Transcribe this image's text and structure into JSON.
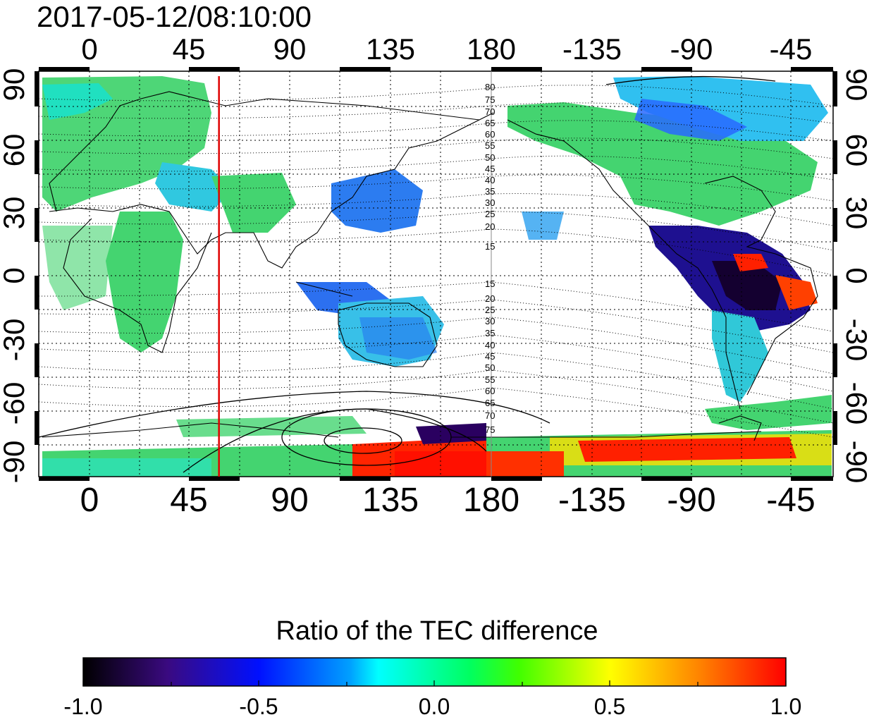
{
  "timestamp": "2017-05-12/08:10:00",
  "x_ticks": [
    "0",
    "45",
    "90",
    "135",
    "180",
    "-135",
    "-90",
    "-45"
  ],
  "y_ticks_left": [
    "90",
    "60",
    "30",
    "0",
    "-30",
    "-60",
    "-90"
  ],
  "y_ticks_right": [
    "90",
    "60",
    "30",
    "0",
    "-30",
    "-60",
    "-90"
  ],
  "contour_labels_north": [
    "80",
    "75",
    "70",
    "65",
    "60",
    "55",
    "50",
    "45",
    "40",
    "35",
    "30",
    "25",
    "20",
    "15"
  ],
  "contour_labels_south": [
    "15",
    "20",
    "25",
    "30",
    "35",
    "40",
    "45",
    "50",
    "55",
    "60",
    "65",
    "70",
    "75"
  ],
  "colorbar": {
    "title": "Ratio of the TEC difference",
    "ticks": [
      "-1.0",
      "-0.5",
      "0.0",
      "0.5",
      "1.0"
    ],
    "min": -1.0,
    "max": 1.0
  },
  "marker_longitude": 58,
  "colors": {
    "marker": "#e00000",
    "background": "#ffffff",
    "data_green": "#3fd86a",
    "data_cyan": "#28e0d0",
    "data_blue": "#2060ff",
    "data_dark": "#1a0040",
    "data_red": "#ff1a00"
  }
}
